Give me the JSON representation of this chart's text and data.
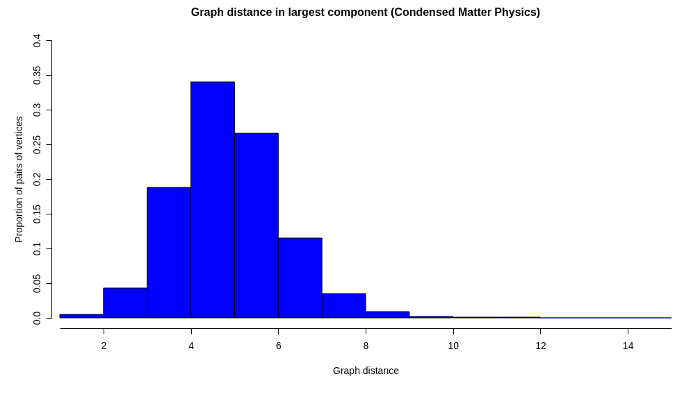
{
  "chart_data": {
    "type": "histogram",
    "title": "Graph distance in largest component (Condensed Matter Physics)",
    "xlabel": "Graph distance",
    "ylabel": "Proportion of pairs of vertices",
    "bins": [
      1,
      2,
      3,
      4,
      5,
      6,
      7,
      8,
      9,
      10,
      11,
      12,
      13,
      14,
      15
    ],
    "values": [
      0.005,
      0.043,
      0.188,
      0.34,
      0.266,
      0.115,
      0.035,
      0.009,
      0.002,
      0.001,
      0.001,
      0,
      0,
      0
    ],
    "color": "#0000ff",
    "xlim": [
      1,
      15
    ],
    "xticks": [
      2,
      4,
      6,
      8,
      10,
      12,
      14
    ],
    "ylim": [
      0,
      0.4
    ],
    "yticks": [
      {
        "value": 0,
        "label": "0.0"
      },
      0.05,
      0.1,
      0.15,
      0.2,
      0.25,
      0.3,
      0.35,
      0.4
    ],
    "grid": false
  }
}
